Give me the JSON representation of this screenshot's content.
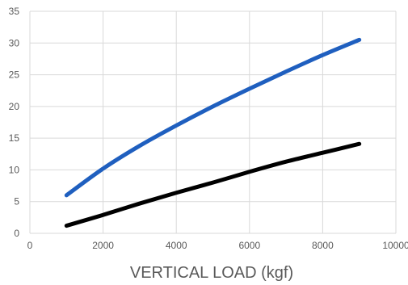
{
  "chart_data": {
    "type": "line",
    "title": "",
    "xlabel": "VERTICAL LOAD (kgf)",
    "ylabel": "",
    "xlim": [
      0,
      10000
    ],
    "ylim": [
      0,
      35
    ],
    "xticks": [
      0,
      2000,
      4000,
      6000,
      8000,
      10000
    ],
    "yticks": [
      0,
      5,
      10,
      15,
      20,
      25,
      30,
      35
    ],
    "grid": true,
    "legend": "none",
    "series": [
      {
        "color": "#1f5fbf",
        "x": [
          1000,
          2000,
          3000,
          4000,
          5000,
          6000,
          7000,
          8000,
          9000
        ],
        "values": [
          6.0,
          10.2,
          13.8,
          17.0,
          20.0,
          22.8,
          25.5,
          28.1,
          30.5
        ]
      },
      {
        "color": "#000000",
        "x": [
          1000,
          2000,
          3000,
          4000,
          5000,
          6000,
          7000,
          8000,
          9000
        ],
        "values": [
          1.2,
          2.9,
          4.7,
          6.4,
          8.0,
          9.7,
          11.3,
          12.7,
          14.1
        ]
      }
    ]
  }
}
